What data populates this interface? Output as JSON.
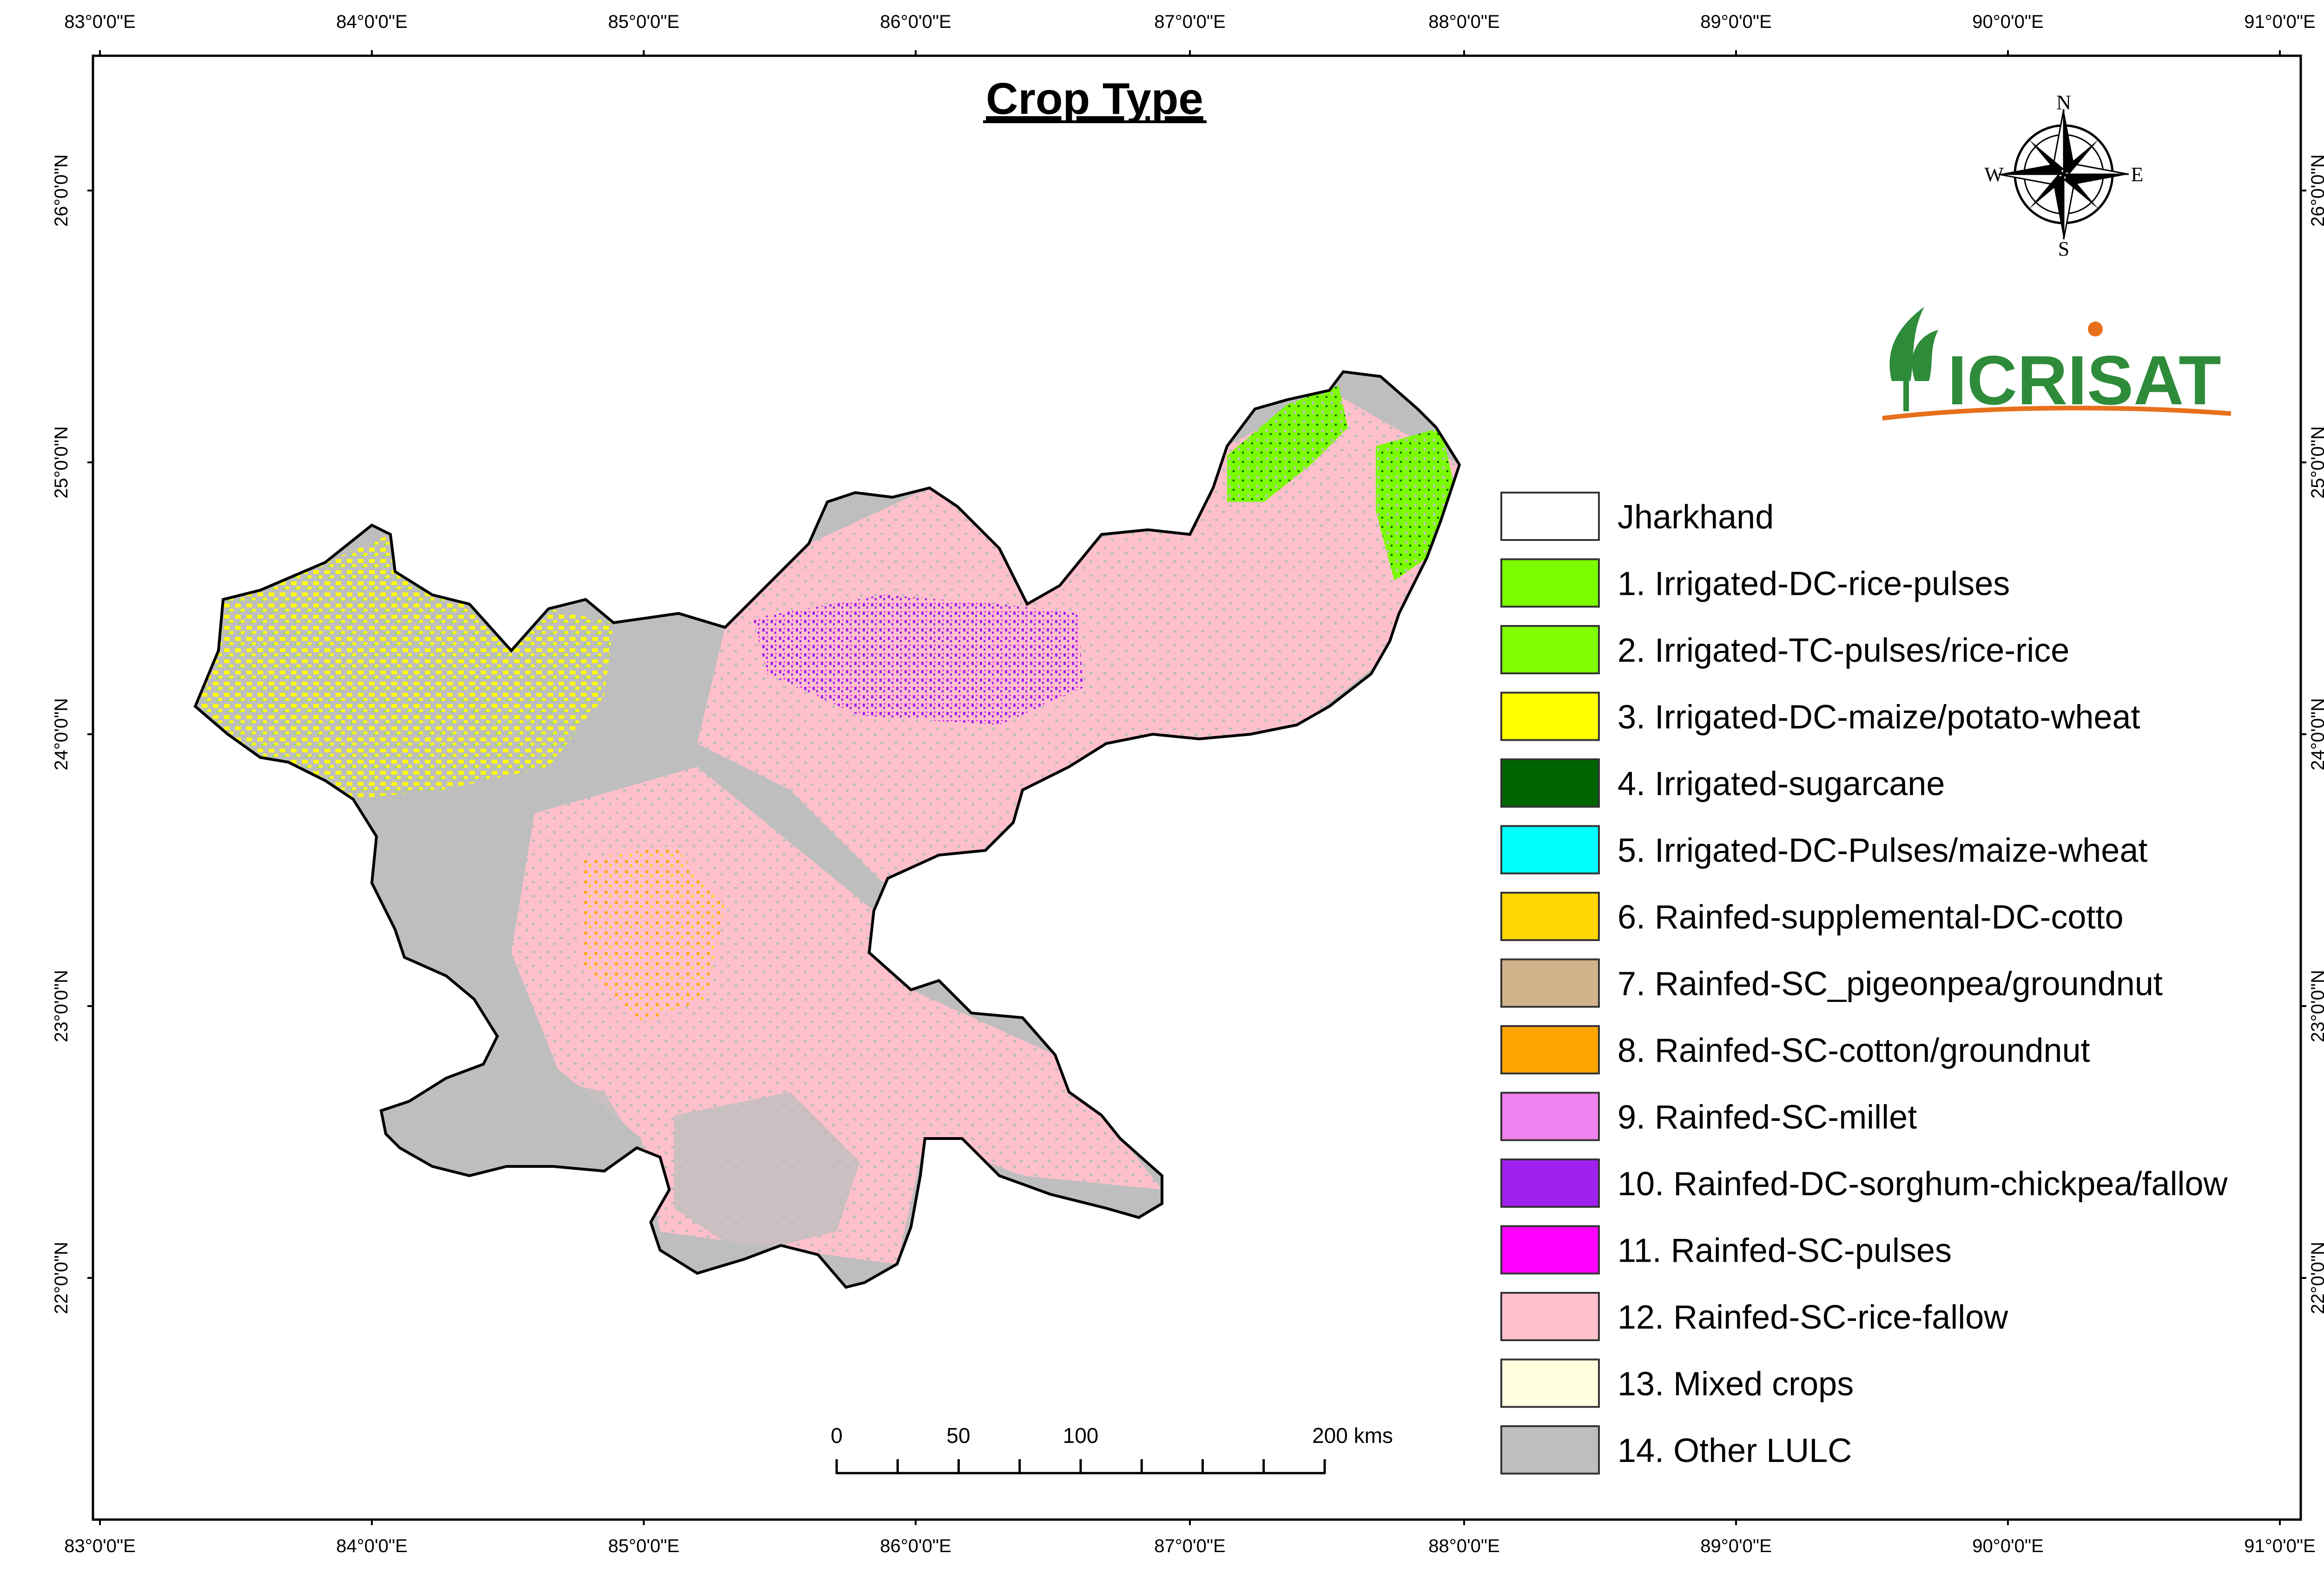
{
  "title": "Crop Type",
  "grid": {
    "longitudes": [
      "83°0'0\"E",
      "84°0'0\"E",
      "85°0'0\"E",
      "86°0'0\"E",
      "87°0'0\"E",
      "88°0'0\"E",
      "89°0'0\"E",
      "90°0'0\"E",
      "91°0'0\"E"
    ],
    "latitudes": [
      "26°0'0\"N",
      "25°0'0\"N",
      "24°0'0\"N",
      "23°0'0\"N",
      "22°0'0\"N"
    ]
  },
  "compass": {
    "n": "N",
    "e": "E",
    "s": "S",
    "w": "W"
  },
  "logo": {
    "text": "ICRISAT",
    "icon": "icrisat-plant-icon",
    "color": "#2e8b3a",
    "accent": "#e8701c"
  },
  "legend": [
    {
      "label": "Jharkhand",
      "color": "#ffffff"
    },
    {
      "label": "1. Irrigated-DC-rice-pulses",
      "color": "#7cfc00"
    },
    {
      "label": "2. Irrigated-TC-pulses/rice-rice",
      "color": "#7fff00"
    },
    {
      "label": "3. Irrigated-DC-maize/potato-wheat",
      "color": "#ffff00"
    },
    {
      "label": "4. Irrigated-sugarcane",
      "color": "#006400"
    },
    {
      "label": "5. Irrigated-DC-Pulses/maize-wheat",
      "color": "#00ffff"
    },
    {
      "label": "6. Rainfed-supplemental-DC-cotto",
      "color": "#ffd700"
    },
    {
      "label": "7. Rainfed-SC_pigeonpea/groundnut",
      "color": "#d2b48c"
    },
    {
      "label": "8. Rainfed-SC-cotton/groundnut",
      "color": "#ffa500"
    },
    {
      "label": "9. Rainfed-SC-millet",
      "color": "#ee82ee"
    },
    {
      "label": "10. Rainfed-DC-sorghum-chickpea/fallow",
      "color": "#a020f0"
    },
    {
      "label": "11. Rainfed-SC-pulses",
      "color": "#ff00ff"
    },
    {
      "label": "12. Rainfed-SC-rice-fallow",
      "color": "#ffc0cb"
    },
    {
      "label": "13. Mixed crops",
      "color": "#ffffe0"
    },
    {
      "label": "14. Other LULC",
      "color": "#bebebe"
    }
  ],
  "scale_bar": {
    "labels": [
      "0",
      "50",
      "100",
      "200 kms"
    ]
  },
  "colors": {
    "base_gray": "#bebebe",
    "rice_fallow_pink": "#ffc0cb",
    "maize_yellow": "#ffff00",
    "sorghum_purple": "#a020f0",
    "rice_pulses_green": "#7cfc00",
    "orange": "#ffa500"
  }
}
